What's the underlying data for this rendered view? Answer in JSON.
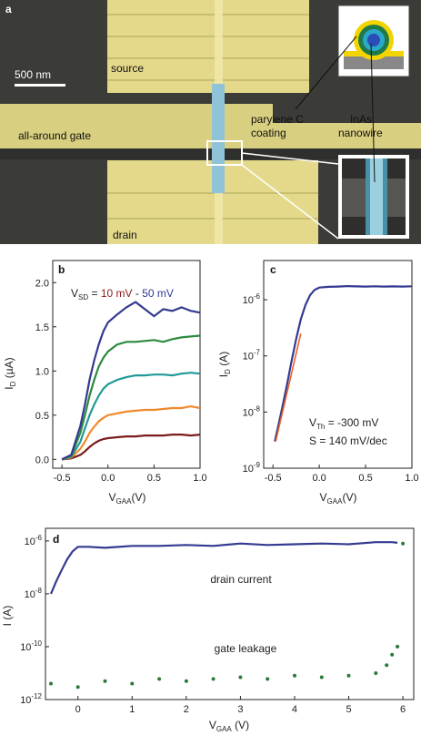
{
  "panel_a": {
    "letter": "a",
    "scale_bar": "500 nm",
    "labels": {
      "source": "source",
      "gate": "all-around gate",
      "drain": "drain",
      "coating_line1": "parylene C",
      "coating_line2": "coating",
      "nanowire_line1": "InAs",
      "nanowire_line2": "nanowire"
    }
  },
  "chart_data": [
    {
      "panel": "b",
      "type": "line",
      "annotation": "V_SD = 10 mV - 50 mV",
      "annotation_parts": {
        "prefix": "V",
        "sub": "SD",
        "eq": " = ",
        "v1": "10 mV",
        "dash": " - ",
        "v2": "50 mV"
      },
      "xlabel": "V_GAA(V)",
      "ylabel": "I_D (µA)",
      "xlim": [
        -0.6,
        1.0
      ],
      "ylim": [
        -0.1,
        2.25
      ],
      "xticks": [
        -0.5,
        0.0,
        0.5,
        1.0
      ],
      "xtick_labels": [
        "-0.5",
        "0.0",
        "0.5",
        "1.0"
      ],
      "yticks": [
        0.0,
        0.5,
        1.0,
        1.5,
        2.0
      ],
      "ytick_labels": [
        "0.0",
        "0.5",
        "1.0",
        "1.5",
        "2.0"
      ],
      "x": [
        -0.5,
        -0.4,
        -0.3,
        -0.25,
        -0.2,
        -0.15,
        -0.1,
        -0.05,
        0.0,
        0.1,
        0.2,
        0.3,
        0.4,
        0.5,
        0.6,
        0.7,
        0.8,
        0.9,
        1.0
      ],
      "series": [
        {
          "color": "#7a1c1c",
          "values": [
            0.0,
            0.01,
            0.05,
            0.09,
            0.14,
            0.18,
            0.21,
            0.23,
            0.24,
            0.25,
            0.26,
            0.26,
            0.27,
            0.27,
            0.27,
            0.28,
            0.28,
            0.27,
            0.28
          ]
        },
        {
          "color": "#f08a2c",
          "values": [
            0.0,
            0.02,
            0.12,
            0.2,
            0.3,
            0.37,
            0.43,
            0.47,
            0.5,
            0.52,
            0.54,
            0.55,
            0.56,
            0.56,
            0.57,
            0.58,
            0.58,
            0.6,
            0.58
          ]
        },
        {
          "color": "#1f9a96",
          "values": [
            0.0,
            0.03,
            0.2,
            0.35,
            0.5,
            0.62,
            0.72,
            0.8,
            0.85,
            0.9,
            0.93,
            0.95,
            0.95,
            0.96,
            0.96,
            0.95,
            0.97,
            0.98,
            0.97
          ]
        },
        {
          "color": "#2b8a3e",
          "values": [
            0.0,
            0.04,
            0.3,
            0.5,
            0.72,
            0.9,
            1.05,
            1.15,
            1.22,
            1.3,
            1.33,
            1.33,
            1.34,
            1.35,
            1.33,
            1.36,
            1.38,
            1.39,
            1.4
          ]
        },
        {
          "color": "#343a90",
          "values": [
            0.0,
            0.05,
            0.38,
            0.62,
            0.9,
            1.12,
            1.3,
            1.45,
            1.55,
            1.64,
            1.72,
            1.78,
            1.7,
            1.62,
            1.7,
            1.68,
            1.72,
            1.68,
            1.66
          ]
        }
      ]
    },
    {
      "panel": "c",
      "type": "line",
      "xlabel": "V_GAA(V)",
      "ylabel": "I_D (A)",
      "yscale": "log",
      "xlim": [
        -0.6,
        1.0
      ],
      "ylim": [
        1e-09,
        5e-06
      ],
      "xticks": [
        -0.5,
        0.0,
        0.5,
        1.0
      ],
      "xtick_labels": [
        "-0.5",
        "0.0",
        "0.5",
        "1.0"
      ],
      "ytick_exps": [
        -9,
        -8,
        -7,
        -6
      ],
      "annotation_vth": {
        "prefix": "V",
        "sub": "Th",
        "rest": " = -300 mV"
      },
      "annotation_s": "S = 140 mV/dec",
      "series": [
        {
          "name": "measured",
          "color": "#343a90",
          "x": [
            -0.48,
            -0.45,
            -0.4,
            -0.35,
            -0.3,
            -0.25,
            -0.2,
            -0.15,
            -0.1,
            -0.05,
            0.0,
            0.1,
            0.2,
            0.3,
            0.4,
            0.5,
            0.6,
            0.7,
            0.8,
            0.9,
            1.0
          ],
          "y": [
            3e-09,
            5e-09,
            1.2e-08,
            3e-08,
            8e-08,
            2e-07,
            4.5e-07,
            8e-07,
            1.2e-06,
            1.5e-06,
            1.65e-06,
            1.7e-06,
            1.72e-06,
            1.75e-06,
            1.73e-06,
            1.72e-06,
            1.74e-06,
            1.72e-06,
            1.73e-06,
            1.72e-06,
            1.74e-06
          ]
        },
        {
          "name": "fit",
          "color": "#e8632a",
          "x": [
            -0.47,
            -0.2
          ],
          "y": [
            3e-09,
            2.5e-07
          ]
        }
      ]
    },
    {
      "panel": "d",
      "type": "scatter",
      "xlabel": "V_GAA (V)",
      "ylabel": "I (A)",
      "yscale": "log",
      "xlim": [
        -0.6,
        6.2
      ],
      "ylim": [
        1e-12,
        3e-06
      ],
      "xticks": [
        0,
        1,
        2,
        3,
        4,
        5,
        6
      ],
      "xtick_labels": [
        "0",
        "1",
        "2",
        "3",
        "4",
        "5",
        "6"
      ],
      "ytick_exps": [
        -12,
        -10,
        -8,
        -6
      ],
      "annotation_drain": "drain current",
      "annotation_gate": "gate leakage",
      "series": [
        {
          "name": "drain current",
          "color": "#343a90",
          "x": [
            -0.5,
            -0.4,
            -0.3,
            -0.2,
            -0.1,
            0.0,
            0.2,
            0.5,
            1.0,
            1.5,
            2.0,
            2.5,
            3.0,
            3.5,
            4.0,
            4.5,
            5.0,
            5.5,
            5.8,
            5.9
          ],
          "y": [
            1e-08,
            3e-08,
            8e-08,
            2e-07,
            4e-07,
            6e-07,
            6e-07,
            5.5e-07,
            6.5e-07,
            6.5e-07,
            7e-07,
            6.5e-07,
            8e-07,
            7e-07,
            7.5e-07,
            8e-07,
            7.5e-07,
            9e-07,
            9e-07,
            8.5e-07
          ]
        },
        {
          "name": "gate leakage",
          "color": "#2b7a3a",
          "x": [
            -0.5,
            0.0,
            0.5,
            1.0,
            1.5,
            2.0,
            2.5,
            3.0,
            3.5,
            4.0,
            4.5,
            5.0,
            5.5,
            5.7,
            5.8,
            5.9,
            6.0
          ],
          "y": [
            4e-12,
            3e-12,
            5e-12,
            4e-12,
            6e-12,
            5e-12,
            6e-12,
            7e-12,
            6e-12,
            8e-12,
            7e-12,
            8e-12,
            1e-11,
            2e-11,
            5e-11,
            1e-10,
            8e-07
          ]
        }
      ]
    }
  ]
}
